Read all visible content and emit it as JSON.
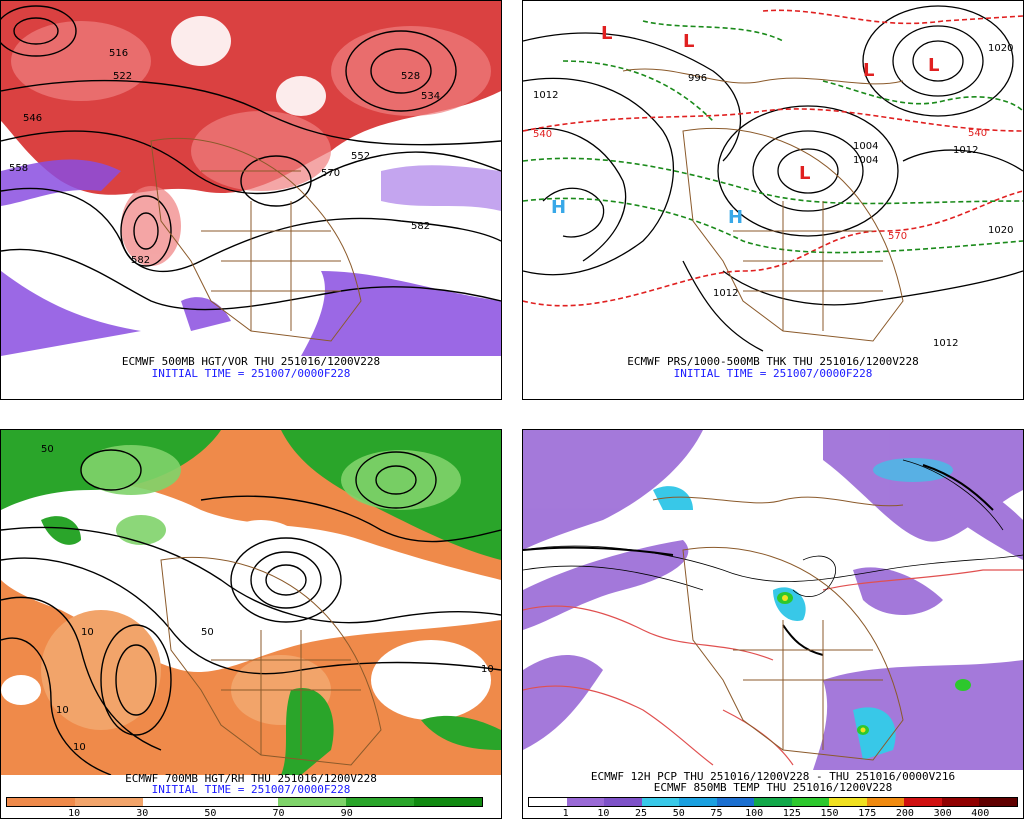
{
  "panels": [
    {
      "id": "vorticity",
      "title": "ECMWF 500MB HGT/VOR THU 251016/1200V228",
      "init": "INITIAL TIME = 251007/0000F228",
      "contour_labels": [
        "516",
        "522",
        "528",
        "534",
        "546",
        "552",
        "558",
        "570",
        "582",
        "582"
      ]
    },
    {
      "id": "pressure",
      "title": "ECMWF PRS/1000-500MB THK THU 251016/1200V228",
      "init": "INITIAL TIME = 251007/0000F228",
      "contour_labels": [
        "996",
        "1012",
        "1004",
        "1004",
        "1012",
        "1020",
        "1020",
        "1012",
        "1012",
        "540",
        "540",
        "570"
      ],
      "symbols": [
        "L",
        "L",
        "L",
        "L",
        "L",
        "H",
        "H"
      ]
    },
    {
      "id": "humidity",
      "title": "ECMWF 700MB HGT/RH THU 251016/1200V228",
      "init": "INITIAL TIME = 251007/0000F228",
      "colorbar_ticks": [
        "10",
        "30",
        "50",
        "70",
        "90"
      ],
      "colorbar_colors": [
        "#ef8a4a",
        "#f2a46a",
        "#ffffff",
        "#ffffff",
        "#7fd36a",
        "#2aa52a",
        "#118a11"
      ],
      "contour_labels": [
        "10",
        "50",
        "10",
        "10",
        "10",
        "50"
      ]
    },
    {
      "id": "precip",
      "title": "ECMWF 12H PCP THU 251016/1200V228 - THU 251016/0000V216",
      "subtitle": "ECMWF 850MB TEMP THU 251016/1200V228",
      "colorbar_ticks": [
        "1",
        "10",
        "25",
        "50",
        "75",
        "100",
        "125",
        "150",
        "175",
        "200",
        "300",
        "400"
      ],
      "colorbar_colors": [
        "#ffffff",
        "#9a6ad6",
        "#7e52c8",
        "#38c8e8",
        "#1aa0e0",
        "#1b6fd0",
        "#12a84a",
        "#2dc82d",
        "#f0e020",
        "#f08a10",
        "#d01010",
        "#900000",
        "#600000"
      ]
    }
  ],
  "colors": {
    "vor_red": "#d42020",
    "vor_purple": "#8a4ee0",
    "rh_orange": "#ef8a4a",
    "rh_green": "#2aa52a",
    "pcp_purple": "#9a6ad6",
    "pcp_cyan": "#38c8e8",
    "border_brown": "#8b5a2b",
    "temp_red": "#e05050",
    "thk_red": "#e02020",
    "prs_green": "#1a8a1a"
  }
}
